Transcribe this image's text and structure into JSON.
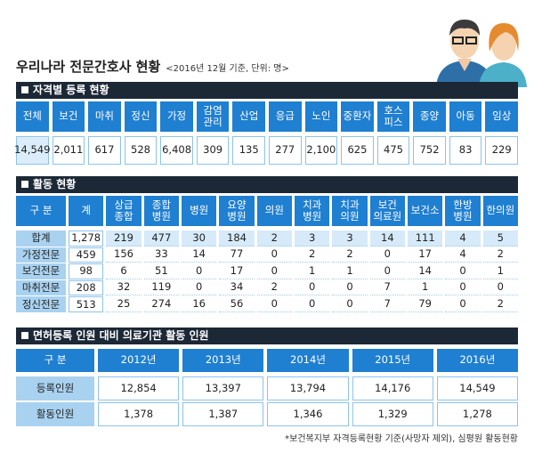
{
  "header": {
    "title": "우리나라 전문간호사 현황",
    "subtitle": "<2016년 12월 기준, 단위: 명>"
  },
  "sections": [
    {
      "title": "자격별 등록 현황",
      "table": {
        "header": [
          "전체",
          "보건",
          "마취",
          "정신",
          "가정",
          "감염\n관리",
          "산업",
          "응급",
          "노인",
          "중환자",
          "호스\n피스",
          "종양",
          "아동",
          "임상"
        ],
        "rows": [
          [
            "14,549",
            "2,011",
            "617",
            "528",
            "6,408",
            "309",
            "135",
            "277",
            "2,100",
            "625",
            "475",
            "752",
            "83",
            "229"
          ]
        ]
      }
    },
    {
      "title": "활동 현황",
      "table": {
        "header": [
          "구 분",
          "계",
          "상급\n종합",
          "종합\n병원",
          "병원",
          "요양\n병원",
          "의원",
          "치과\n병원",
          "치과\n의원",
          "보건\n의료원",
          "보건소",
          "한방\n병원",
          "한의원"
        ],
        "rows": [
          [
            "합계",
            "1,278",
            "219",
            "477",
            "30",
            "184",
            "2",
            "3",
            "3",
            "14",
            "111",
            "4",
            "5"
          ],
          [
            "가정전문",
            "459",
            "156",
            "33",
            "14",
            "77",
            "0",
            "2",
            "2",
            "0",
            "17",
            "4",
            "2"
          ],
          [
            "보건전문",
            "98",
            "6",
            "51",
            "0",
            "17",
            "0",
            "1",
            "1",
            "0",
            "14",
            "0",
            "1"
          ],
          [
            "마취전문",
            "208",
            "32",
            "119",
            "0",
            "34",
            "2",
            "0",
            "0",
            "7",
            "1",
            "0",
            "0"
          ],
          [
            "정신전문",
            "513",
            "25",
            "274",
            "16",
            "56",
            "0",
            "0",
            "0",
            "7",
            "79",
            "0",
            "2"
          ]
        ]
      }
    },
    {
      "title": "면허등록 인원 대비 의료기관 활동 인원",
      "table": {
        "header": [
          "구 분",
          "2012년",
          "2013년",
          "2014년",
          "2015년",
          "2016년"
        ],
        "rows": [
          [
            "등록인원",
            "12,854",
            "13,397",
            "13,794",
            "14,176",
            "14,549"
          ],
          [
            "활동인원",
            "1,378",
            "1,387",
            "1,346",
            "1,329",
            "1,278"
          ]
        ]
      }
    }
  ],
  "footnote": "*보건복지부 자격등록현황 기준(사망자 제외), 심평원 활동현황"
}
